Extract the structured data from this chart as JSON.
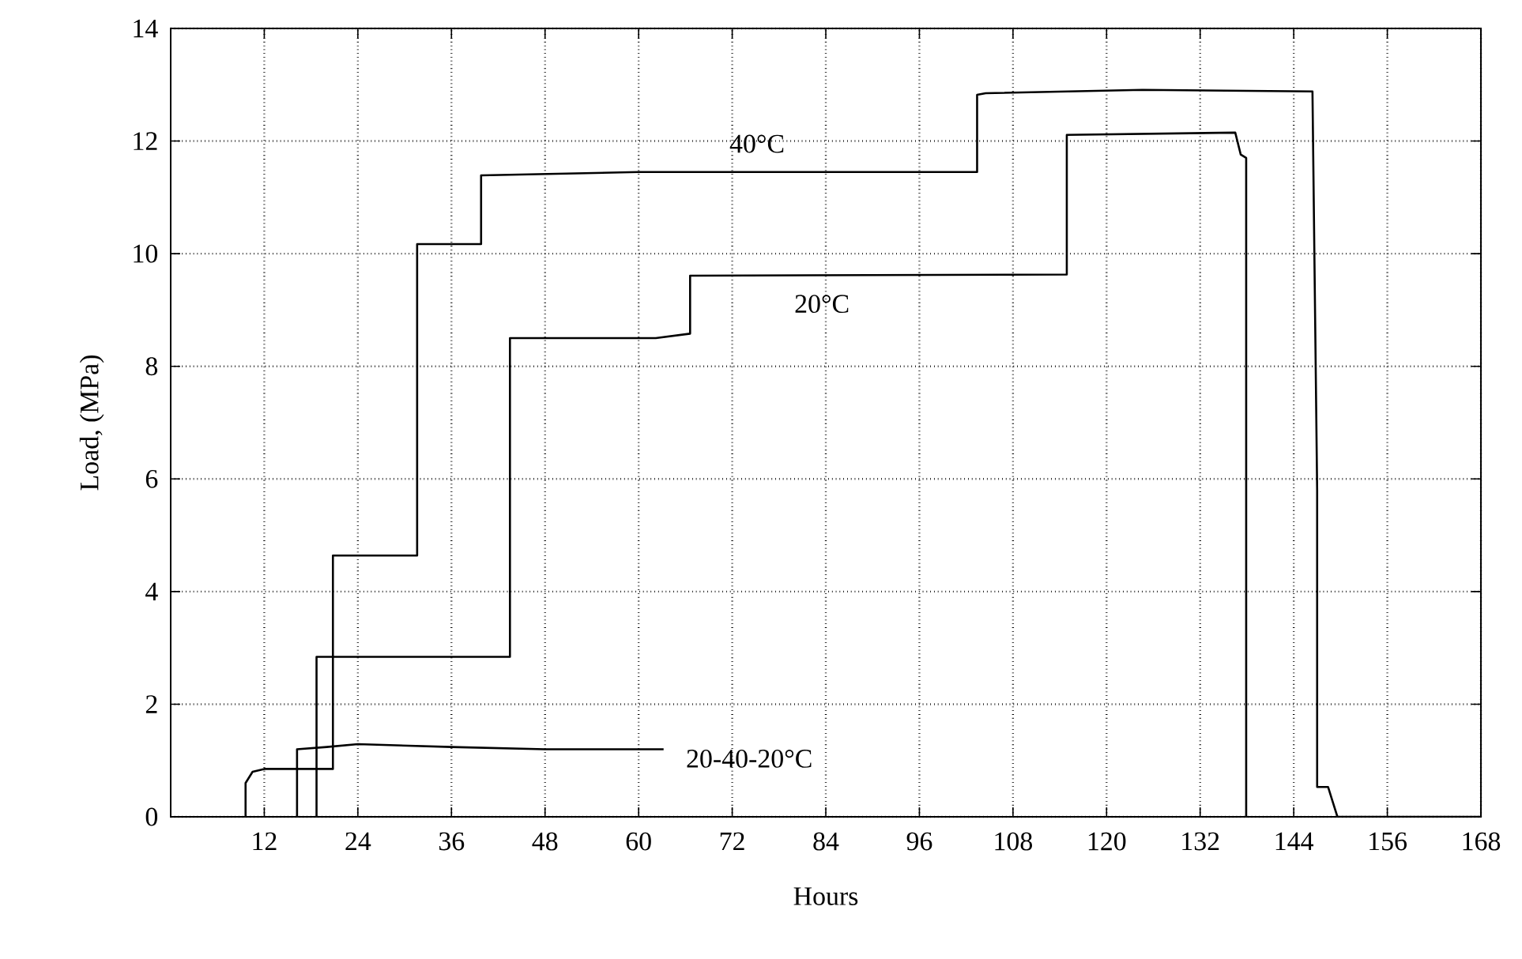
{
  "chart_data": {
    "type": "line",
    "xlabel": "Hours",
    "ylabel": "Load, (MPa)",
    "xlim": [
      0,
      168
    ],
    "ylim": [
      0,
      14
    ],
    "xticks": [
      12,
      24,
      36,
      48,
      60,
      72,
      84,
      96,
      108,
      120,
      132,
      144,
      156,
      168
    ],
    "yticks": [
      0,
      2,
      4,
      6,
      8,
      10,
      12,
      14
    ],
    "grid": true,
    "legend": false,
    "marker": "none",
    "line_style": "solid",
    "series": [
      {
        "name": "40°C",
        "color": "#000000",
        "x": [
          9.6,
          9.6,
          10.5,
          12,
          20.8,
          20.8,
          31.6,
          31.6,
          39.8,
          39.8,
          60,
          103.4,
          103.4,
          104.5,
          124.6,
          146.4,
          147.0,
          147.0,
          148.4,
          149.6,
          168
        ],
        "values": [
          0,
          0.6,
          0.8,
          0.85,
          0.85,
          4.64,
          4.64,
          10.17,
          10.17,
          11.39,
          11.45,
          11.45,
          12.82,
          12.85,
          12.91,
          12.88,
          5.8,
          0.53,
          0.53,
          0,
          0
        ]
      },
      {
        "name": "20°C",
        "color": "#000000",
        "x": [
          18.7,
          18.7,
          43.5,
          43.5,
          62.2,
          66.6,
          66.6,
          114.9,
          114.9,
          136.5,
          137.2,
          137.9,
          137.9
        ],
        "values": [
          0,
          2.84,
          2.84,
          8.5,
          8.5,
          8.58,
          9.61,
          9.63,
          12.11,
          12.15,
          11.76,
          11.7,
          0
        ]
      },
      {
        "name": "20-40-20°C",
        "color": "#000000",
        "x": [
          16.2,
          16.2,
          20,
          24,
          36,
          48,
          63.2
        ],
        "values": [
          0,
          1.2,
          1.24,
          1.29,
          1.24,
          1.2,
          1.2
        ]
      }
    ]
  }
}
